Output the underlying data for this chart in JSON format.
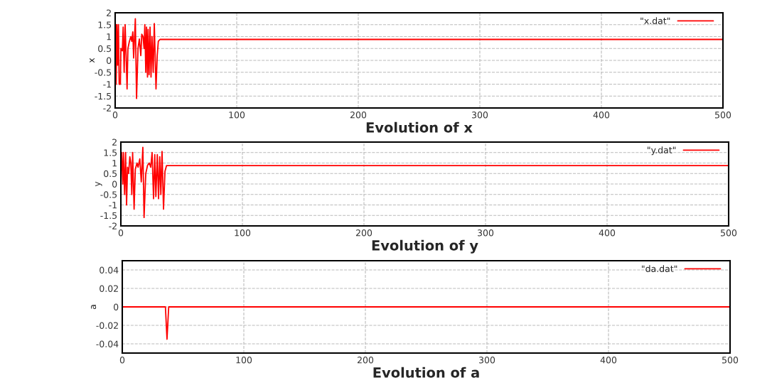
{
  "chart_data": [
    {
      "type": "line",
      "xlabel": "Evolution of x",
      "ylabel": "x",
      "xlim": [
        0,
        500
      ],
      "xticks": [
        0,
        100,
        200,
        300,
        400,
        500
      ],
      "ylim": [
        -2,
        2
      ],
      "yticks": [
        -2,
        -1.5,
        -1,
        -0.5,
        0,
        0.5,
        1,
        1.5,
        2
      ],
      "grid": true,
      "legend": "top right",
      "series": [
        {
          "name": "\"x.dat\"",
          "color": "#ff0000",
          "x": [
            0,
            0.4,
            0.8,
            1.4,
            2.0,
            2.7,
            3.3,
            4.3,
            4.7,
            5.9,
            6.6,
            7.4,
            8.2,
            9.0,
            9.8,
            10.5,
            11.7,
            12.9,
            13.7,
            14.5,
            15.2,
            16.6,
            17.6,
            18.8,
            19.9,
            21.1,
            21.9,
            22.9,
            23.8,
            24.4,
            25.2,
            25.8,
            26.6,
            27.1,
            27.9,
            28.7,
            29.5,
            30.3,
            31.3,
            32.2,
            33.6,
            34.6,
            35.5,
            36.9,
            500
          ],
          "values": [
            0.5,
            1.5,
            -1,
            1.5,
            -0.2,
            1.5,
            -1,
            -1,
            0.5,
            0.4,
            1.4,
            -0.5,
            1.5,
            0.2,
            -1.2,
            0.5,
            0.8,
            1.0,
            0.8,
            1.2,
            0.1,
            1.75,
            -1.6,
            0.5,
            0.9,
            0.2,
            1.1,
            1.0,
            0.5,
            1.5,
            -0.5,
            1.4,
            -0.7,
            1.3,
            -0.6,
            1.4,
            -0.7,
            1.0,
            -0.5,
            1.55,
            -1.2,
            0.2,
            0.8,
            0.88,
            0.88
          ]
        }
      ]
    },
    {
      "type": "line",
      "xlabel": "Evolution of y",
      "ylabel": "y",
      "xlim": [
        0,
        500
      ],
      "xticks": [
        0,
        100,
        200,
        300,
        400,
        500
      ],
      "ylim": [
        -2,
        2
      ],
      "yticks": [
        -2,
        -1.5,
        -1,
        -0.5,
        0,
        0.5,
        1,
        1.5,
        2
      ],
      "grid": true,
      "legend": "top right",
      "series": [
        {
          "name": "\"y.dat\"",
          "color": "#ff0000",
          "x": [
            0,
            0.6,
            1.6,
            2.1,
            3.1,
            3.9,
            4.7,
            5.5,
            6.4,
            7.4,
            8.2,
            9.0,
            9.7,
            10.9,
            11.9,
            13.3,
            14.2,
            15.6,
            16.8,
            18.1,
            19.1,
            20.5,
            22.0,
            23.4,
            24.6,
            25.7,
            26.9,
            27.9,
            28.8,
            30.0,
            31.0,
            32.0,
            32.9,
            33.9,
            35.1,
            36.3,
            37.6,
            500
          ],
          "values": [
            0.5,
            1.5,
            0.0,
            1.5,
            -0.5,
            1.5,
            -1.0,
            0.8,
            0.5,
            1.3,
            1.0,
            -0.5,
            1.5,
            -1.2,
            0.7,
            1.0,
            0.8,
            1.2,
            0.1,
            1.75,
            -1.6,
            0.5,
            0.9,
            1.0,
            0.8,
            1.5,
            -0.7,
            1.4,
            -0.6,
            1.4,
            -0.7,
            1.3,
            -0.5,
            1.55,
            -1.2,
            0.6,
            0.88,
            0.88
          ]
        }
      ]
    },
    {
      "type": "line",
      "xlabel": "Evolution of a",
      "ylabel": "a",
      "xlim": [
        0,
        500
      ],
      "xticks": [
        0,
        100,
        200,
        300,
        400,
        500
      ],
      "ylim": [
        -0.05,
        0.05
      ],
      "yticks": [
        -0.04,
        -0.02,
        0,
        0.02,
        0.04
      ],
      "grid": true,
      "legend": "top right",
      "series": [
        {
          "name": "\"da.dat\"",
          "color": "#ff0000",
          "x": [
            0,
            35.5,
            36.8,
            38.2,
            500
          ],
          "values": [
            0,
            0,
            -0.035,
            0,
            0
          ]
        }
      ]
    }
  ]
}
